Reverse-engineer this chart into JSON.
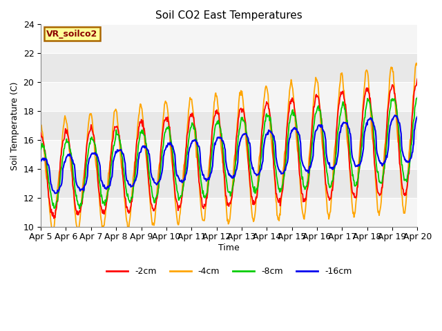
{
  "title": "Soil CO2 East Temperatures",
  "ylabel": "Soil Temperature (C)",
  "xlabel": "Time",
  "ylim": [
    10,
    24
  ],
  "label_box_text": "VR_soilco2",
  "colors": {
    "2cm": "#ff0000",
    "4cm": "#ffa500",
    "8cm": "#00cc00",
    "16cm": "#0000ee"
  },
  "legend_labels": [
    "-2cm",
    "-4cm",
    "-8cm",
    "-16cm"
  ],
  "xtick_labels": [
    "Apr 5",
    "Apr 6",
    "Apr 7",
    "Apr 8",
    "Apr 9",
    "Apr 10",
    "Apr 11",
    "Apr 12",
    "Apr 13",
    "Apr 14",
    "Apr 15",
    "Apr 16",
    "Apr 17",
    "Apr 18",
    "Apr 19",
    "Apr 20"
  ],
  "band_colors_alt": [
    "#f5f5f5",
    "#e8e8e8"
  ],
  "n_days": 15,
  "pts_per_day": 48
}
